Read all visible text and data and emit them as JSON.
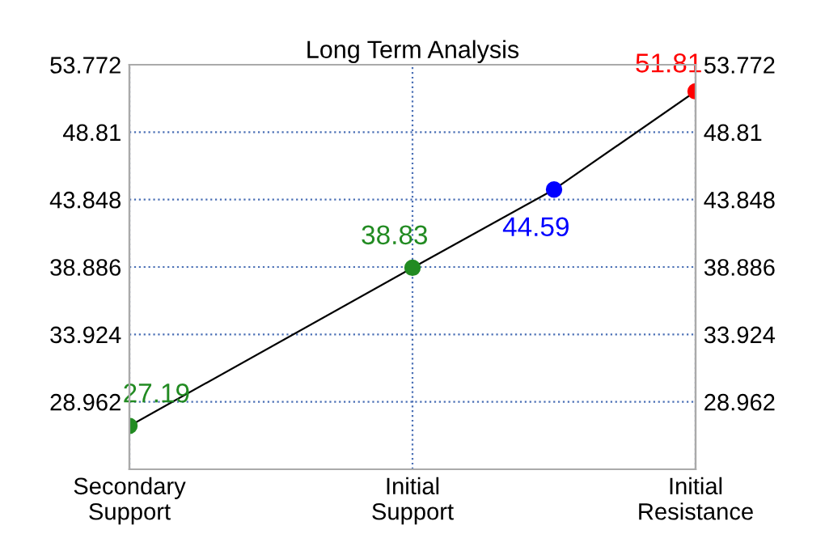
{
  "chart_data": {
    "type": "line",
    "title": "Long Term Analysis",
    "categories": [
      "Secondary\nSupport",
      null,
      "Initial\nSupport",
      null,
      "Initial\nResistance"
    ],
    "series": [
      {
        "color": "#000000",
        "colors": [
          "#228b22",
          null,
          "#228b22",
          "#0000ff",
          "#ff0000"
        ],
        "values": [
          27.19,
          null,
          38.83,
          44.59,
          51.81
        ],
        "value_labels": [
          "27.19",
          null,
          "38.83",
          "44.59",
          "51.81"
        ]
      }
    ],
    "ylim": [
      24.0,
      53.772
    ],
    "yticks": [
      28.962,
      33.924,
      38.886,
      43.848,
      48.81,
      53.772
    ],
    "y2lim": [
      24.0,
      53.772
    ],
    "y2ticks": [
      28.962,
      33.924,
      38.886,
      43.848,
      48.81,
      53.772
    ],
    "marker": "circle",
    "line_style": "solid",
    "grid": true
  }
}
